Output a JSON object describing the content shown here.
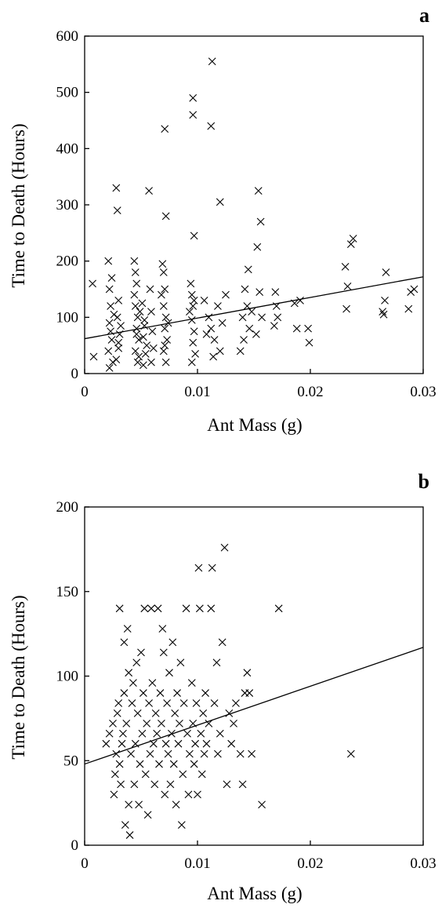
{
  "chart_data": [
    {
      "type": "scatter",
      "panel_label": "a",
      "xlabel": "Ant Mass (g)",
      "ylabel": "Time to Death (Hours)",
      "xlim": [
        0,
        0.03
      ],
      "ylim": [
        0,
        600
      ],
      "xticks": [
        0,
        0.01,
        0.02,
        0.03
      ],
      "xtick_labels": [
        "0",
        "0.01",
        "0.02",
        "0.03"
      ],
      "yticks": [
        0,
        100,
        200,
        300,
        400,
        500,
        600
      ],
      "ytick_labels": [
        "0",
        "100",
        "200",
        "300",
        "400",
        "500",
        "600"
      ],
      "marker": "x",
      "grid": false,
      "legend": "none",
      "points": [
        [
          0.0007,
          160
        ],
        [
          0.0008,
          30
        ],
        [
          0.0021,
          200
        ],
        [
          0.0022,
          150
        ],
        [
          0.0023,
          120
        ],
        [
          0.0022,
          90
        ],
        [
          0.0024,
          60
        ],
        [
          0.0021,
          40
        ],
        [
          0.0025,
          20
        ],
        [
          0.0023,
          75
        ],
        [
          0.0026,
          105
        ],
        [
          0.0024,
          170
        ],
        [
          0.0022,
          10
        ],
        [
          0.0028,
          330
        ],
        [
          0.0029,
          290
        ],
        [
          0.003,
          130
        ],
        [
          0.0029,
          100
        ],
        [
          0.0031,
          70
        ],
        [
          0.003,
          45
        ],
        [
          0.0028,
          25
        ],
        [
          0.0032,
          85
        ],
        [
          0.003,
          55
        ],
        [
          0.0044,
          200
        ],
        [
          0.0045,
          180
        ],
        [
          0.0046,
          160
        ],
        [
          0.0045,
          120
        ],
        [
          0.0047,
          100
        ],
        [
          0.0046,
          80
        ],
        [
          0.0048,
          60
        ],
        [
          0.0045,
          40
        ],
        [
          0.0047,
          20
        ],
        [
          0.0044,
          140
        ],
        [
          0.0049,
          110
        ],
        [
          0.0046,
          70
        ],
        [
          0.0048,
          30
        ],
        [
          0.0051,
          125
        ],
        [
          0.0053,
          95
        ],
        [
          0.0052,
          65
        ],
        [
          0.0054,
          35
        ],
        [
          0.0052,
          15
        ],
        [
          0.0055,
          50
        ],
        [
          0.0053,
          85
        ],
        [
          0.0057,
          325
        ],
        [
          0.0058,
          150
        ],
        [
          0.0059,
          110
        ],
        [
          0.006,
          75
        ],
        [
          0.0061,
          45
        ],
        [
          0.0059,
          20
        ],
        [
          0.0069,
          195
        ],
        [
          0.007,
          180
        ],
        [
          0.0071,
          150
        ],
        [
          0.007,
          120
        ],
        [
          0.0072,
          100
        ],
        [
          0.0071,
          80
        ],
        [
          0.0073,
          60
        ],
        [
          0.007,
          40
        ],
        [
          0.0072,
          20
        ],
        [
          0.0068,
          140
        ],
        [
          0.0074,
          90
        ],
        [
          0.0071,
          50
        ],
        [
          0.0071,
          435
        ],
        [
          0.0072,
          280
        ],
        [
          0.0094,
          160
        ],
        [
          0.0095,
          140
        ],
        [
          0.0096,
          120
        ],
        [
          0.0095,
          95
        ],
        [
          0.0097,
          75
        ],
        [
          0.0096,
          55
        ],
        [
          0.0098,
          35
        ],
        [
          0.0095,
          20
        ],
        [
          0.0093,
          110
        ],
        [
          0.0097,
          130
        ],
        [
          0.0096,
          490
        ],
        [
          0.0096,
          460
        ],
        [
          0.0097,
          245
        ],
        [
          0.0113,
          555
        ],
        [
          0.0112,
          440
        ],
        [
          0.012,
          305
        ],
        [
          0.0106,
          130
        ],
        [
          0.011,
          100
        ],
        [
          0.0112,
          80
        ],
        [
          0.0115,
          60
        ],
        [
          0.0118,
          120
        ],
        [
          0.012,
          40
        ],
        [
          0.0122,
          90
        ],
        [
          0.0125,
          140
        ],
        [
          0.0114,
          30
        ],
        [
          0.0108,
          70
        ],
        [
          0.0138,
          40
        ],
        [
          0.014,
          100
        ],
        [
          0.0142,
          150
        ],
        [
          0.0144,
          120
        ],
        [
          0.0146,
          80
        ],
        [
          0.0148,
          110
        ],
        [
          0.0141,
          60
        ],
        [
          0.0145,
          185
        ],
        [
          0.0154,
          325
        ],
        [
          0.0156,
          270
        ],
        [
          0.0153,
          225
        ],
        [
          0.0155,
          145
        ],
        [
          0.0157,
          100
        ],
        [
          0.0152,
          70
        ],
        [
          0.0169,
          145
        ],
        [
          0.017,
          120
        ],
        [
          0.0171,
          100
        ],
        [
          0.0168,
          85
        ],
        [
          0.0186,
          125
        ],
        [
          0.0188,
          80
        ],
        [
          0.0191,
          130
        ],
        [
          0.0198,
          80
        ],
        [
          0.0199,
          55
        ],
        [
          0.0231,
          190
        ],
        [
          0.0233,
          155
        ],
        [
          0.0232,
          115
        ],
        [
          0.0236,
          230
        ],
        [
          0.0238,
          240
        ],
        [
          0.0264,
          110
        ],
        [
          0.0265,
          105
        ],
        [
          0.0266,
          130
        ],
        [
          0.0267,
          180
        ],
        [
          0.0287,
          115
        ],
        [
          0.0289,
          145
        ],
        [
          0.0292,
          150
        ]
      ],
      "fit_line": [
        [
          0,
          62
        ],
        [
          0.03,
          172
        ]
      ]
    },
    {
      "type": "scatter",
      "panel_label": "b",
      "xlabel": "Ant Mass (g)",
      "ylabel": "Time to Death (Hours)",
      "xlim": [
        0,
        0.03
      ],
      "ylim": [
        0,
        200
      ],
      "xticks": [
        0,
        0.01,
        0.02,
        0.03
      ],
      "xtick_labels": [
        "0",
        "0.01",
        "0.02",
        "0.03"
      ],
      "yticks": [
        0,
        50,
        100,
        150,
        200
      ],
      "ytick_labels": [
        "0",
        "50",
        "100",
        "150",
        "200"
      ],
      "marker": "x",
      "grid": false,
      "legend": "none",
      "points": [
        [
          0.0019,
          60
        ],
        [
          0.0022,
          66
        ],
        [
          0.0025,
          72
        ],
        [
          0.0026,
          30
        ],
        [
          0.0027,
          42
        ],
        [
          0.0028,
          54
        ],
        [
          0.0029,
          78
        ],
        [
          0.003,
          84
        ],
        [
          0.0031,
          48
        ],
        [
          0.0031,
          140
        ],
        [
          0.0032,
          36
        ],
        [
          0.0033,
          60
        ],
        [
          0.0034,
          66
        ],
        [
          0.0035,
          120
        ],
        [
          0.0035,
          90
        ],
        [
          0.0036,
          12
        ],
        [
          0.0037,
          72
        ],
        [
          0.0038,
          128
        ],
        [
          0.0039,
          24
        ],
        [
          0.0039,
          102
        ],
        [
          0.004,
          6
        ],
        [
          0.0041,
          54
        ],
        [
          0.0042,
          84
        ],
        [
          0.0043,
          96
        ],
        [
          0.0044,
          36
        ],
        [
          0.0045,
          60
        ],
        [
          0.0046,
          108
        ],
        [
          0.0047,
          78
        ],
        [
          0.0048,
          24
        ],
        [
          0.0049,
          48
        ],
        [
          0.005,
          114
        ],
        [
          0.0051,
          66
        ],
        [
          0.0052,
          90
        ],
        [
          0.0053,
          140
        ],
        [
          0.0054,
          42
        ],
        [
          0.0055,
          72
        ],
        [
          0.0056,
          18
        ],
        [
          0.0057,
          84
        ],
        [
          0.0058,
          54
        ],
        [
          0.0059,
          140
        ],
        [
          0.006,
          96
        ],
        [
          0.0061,
          60
        ],
        [
          0.0062,
          36
        ],
        [
          0.0063,
          78
        ],
        [
          0.0064,
          66
        ],
        [
          0.0065,
          140
        ],
        [
          0.0066,
          48
        ],
        [
          0.0067,
          90
        ],
        [
          0.0068,
          72
        ],
        [
          0.0069,
          128
        ],
        [
          0.007,
          114
        ],
        [
          0.0071,
          30
        ],
        [
          0.0072,
          60
        ],
        [
          0.0073,
          84
        ],
        [
          0.0074,
          54
        ],
        [
          0.0075,
          102
        ],
        [
          0.0076,
          36
        ],
        [
          0.0077,
          66
        ],
        [
          0.0078,
          120
        ],
        [
          0.0079,
          48
        ],
        [
          0.008,
          78
        ],
        [
          0.0081,
          24
        ],
        [
          0.0082,
          90
        ],
        [
          0.0083,
          60
        ],
        [
          0.0084,
          72
        ],
        [
          0.0085,
          108
        ],
        [
          0.0086,
          12
        ],
        [
          0.0087,
          42
        ],
        [
          0.0088,
          84
        ],
        [
          0.009,
          140
        ],
        [
          0.0091,
          66
        ],
        [
          0.0092,
          30
        ],
        [
          0.0093,
          54
        ],
        [
          0.0095,
          96
        ],
        [
          0.0096,
          72
        ],
        [
          0.0097,
          48
        ],
        [
          0.0098,
          60
        ],
        [
          0.0099,
          84
        ],
        [
          0.01,
          30
        ],
        [
          0.0101,
          164
        ],
        [
          0.0102,
          140
        ],
        [
          0.0103,
          66
        ],
        [
          0.0104,
          42
        ],
        [
          0.0105,
          78
        ],
        [
          0.0106,
          54
        ],
        [
          0.0107,
          90
        ],
        [
          0.0108,
          60
        ],
        [
          0.011,
          72
        ],
        [
          0.0112,
          140
        ],
        [
          0.0113,
          164
        ],
        [
          0.0115,
          84
        ],
        [
          0.0117,
          108
        ],
        [
          0.0118,
          54
        ],
        [
          0.012,
          66
        ],
        [
          0.0122,
          120
        ],
        [
          0.0124,
          176
        ],
        [
          0.0126,
          36
        ],
        [
          0.0128,
          78
        ],
        [
          0.013,
          60
        ],
        [
          0.0132,
          72
        ],
        [
          0.0134,
          84
        ],
        [
          0.0138,
          54
        ],
        [
          0.014,
          36
        ],
        [
          0.0142,
          90
        ],
        [
          0.0144,
          102
        ],
        [
          0.0146,
          90
        ],
        [
          0.0148,
          54
        ],
        [
          0.0157,
          24
        ],
        [
          0.0172,
          140
        ],
        [
          0.0236,
          54
        ]
      ],
      "fit_line": [
        [
          0,
          48
        ],
        [
          0.03,
          117
        ]
      ]
    }
  ]
}
